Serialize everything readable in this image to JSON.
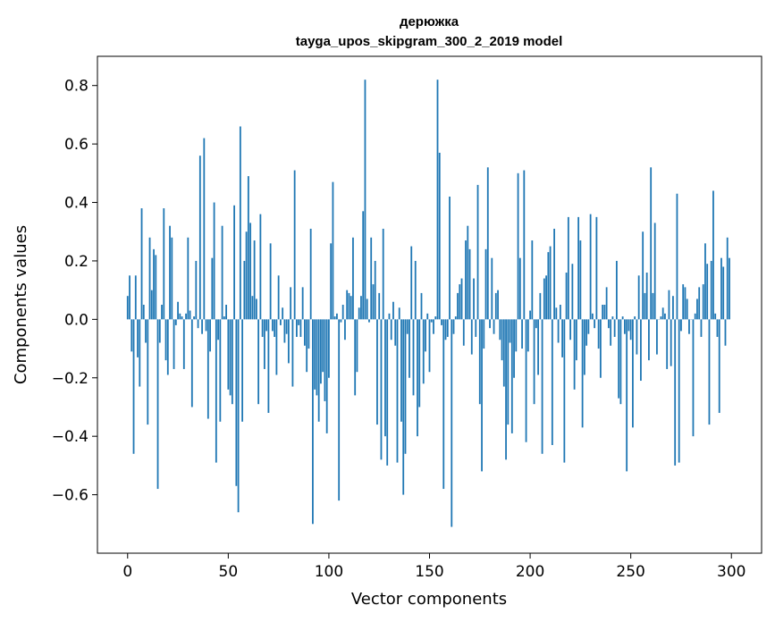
{
  "chart_data": {
    "type": "bar",
    "title": "дерюжка",
    "subtitle": "tayga_upos_skipgram_300_2_2019 model",
    "xlabel": "Vector components",
    "ylabel": "Components values",
    "xlim": [
      -15,
      315
    ],
    "ylim": [
      -0.8,
      0.9
    ],
    "xticks": [
      0,
      50,
      100,
      150,
      200,
      250,
      300
    ],
    "yticks": [
      -0.6,
      -0.4,
      -0.2,
      0.0,
      0.2,
      0.4,
      0.6,
      0.8
    ],
    "ytick_labels": [
      "−0.6",
      "−0.4",
      "−0.2",
      "0.0",
      "0.2",
      "0.4",
      "0.6",
      "0.8"
    ],
    "grid": false,
    "bar_color": "#1f77b4",
    "values": [
      0.08,
      0.15,
      -0.11,
      -0.46,
      0.15,
      -0.13,
      -0.23,
      0.38,
      0.05,
      -0.08,
      -0.36,
      0.28,
      0.1,
      0.24,
      0.22,
      -0.58,
      -0.08,
      0.05,
      0.38,
      -0.14,
      -0.19,
      0.32,
      0.28,
      -0.17,
      -0.02,
      0.06,
      0.02,
      0.01,
      -0.17,
      0.02,
      0.28,
      0.03,
      -0.3,
      0.01,
      0.2,
      -0.03,
      0.56,
      -0.05,
      0.62,
      -0.04,
      -0.34,
      -0.11,
      0.21,
      0.4,
      -0.49,
      -0.07,
      -0.35,
      0.32,
      0.01,
      0.05,
      -0.24,
      -0.26,
      -0.29,
      0.39,
      -0.57,
      -0.66,
      0.66,
      -0.35,
      0.2,
      0.3,
      0.49,
      0.33,
      0.08,
      0.27,
      0.07,
      -0.29,
      0.36,
      -0.06,
      -0.17,
      -0.04,
      -0.32,
      0.26,
      -0.04,
      -0.06,
      -0.19,
      0.15,
      -0.02,
      0.04,
      -0.08,
      -0.05,
      -0.15,
      0.11,
      -0.23,
      0.51,
      -0.06,
      -0.02,
      -0.06,
      0.11,
      -0.09,
      -0.18,
      -0.1,
      0.31,
      -0.7,
      -0.24,
      -0.26,
      -0.35,
      -0.22,
      -0.18,
      -0.28,
      -0.39,
      -0.2,
      0.26,
      0.47,
      0.01,
      0.02,
      -0.62,
      -0.01,
      0.05,
      -0.07,
      0.1,
      0.09,
      0.08,
      0.28,
      -0.26,
      -0.18,
      0.04,
      0.08,
      0.37,
      0.82,
      0.07,
      -0.01,
      0.28,
      0.12,
      0.2,
      -0.36,
      0.09,
      -0.48,
      0.31,
      -0.4,
      -0.5,
      0.02,
      -0.07,
      0.06,
      -0.09,
      -0.49,
      0.04,
      -0.35,
      -0.6,
      -0.46,
      -0.05,
      -0.2,
      0.25,
      -0.26,
      0.2,
      -0.4,
      -0.3,
      0.09,
      -0.22,
      -0.11,
      0.02,
      -0.18,
      -0.01,
      -0.05,
      0.01,
      0.82,
      0.57,
      -0.02,
      -0.58,
      -0.07,
      -0.06,
      0.42,
      -0.71,
      -0.05,
      0.01,
      0.09,
      0.12,
      0.14,
      -0.09,
      0.27,
      0.32,
      0.24,
      -0.12,
      0.14,
      -0.06,
      0.46,
      -0.29,
      -0.52,
      -0.1,
      0.24,
      0.52,
      -0.03,
      0.21,
      -0.05,
      0.09,
      0.1,
      -0.07,
      -0.14,
      -0.23,
      -0.48,
      -0.36,
      -0.08,
      -0.39,
      -0.2,
      -0.11,
      0.5,
      0.21,
      -0.1,
      0.51,
      -0.42,
      -0.11,
      0.03,
      0.27,
      -0.29,
      -0.03,
      -0.19,
      0.09,
      -0.46,
      0.14,
      0.15,
      0.23,
      0.25,
      -0.43,
      0.31,
      0.04,
      -0.08,
      0.05,
      -0.13,
      -0.49,
      0.16,
      0.35,
      -0.07,
      0.19,
      -0.24,
      -0.14,
      0.35,
      0.27,
      -0.37,
      -0.19,
      -0.09,
      -0.05,
      0.36,
      0.02,
      -0.03,
      0.35,
      -0.1,
      -0.2,
      0.05,
      0.05,
      0.11,
      -0.03,
      -0.09,
      0.01,
      -0.06,
      0.2,
      -0.27,
      -0.29,
      0.01,
      -0.05,
      -0.52,
      -0.04,
      -0.07,
      -0.37,
      0.01,
      -0.12,
      0.15,
      -0.21,
      0.3,
      0.09,
      0.16,
      -0.14,
      0.52,
      0.09,
      0.33,
      -0.12,
      0.0,
      0.01,
      0.04,
      0.02,
      -0.17,
      0.1,
      -0.16,
      0.08,
      -0.5,
      0.43,
      -0.49,
      -0.04,
      0.12,
      0.11,
      0.07,
      -0.05,
      0.0,
      -0.4,
      0.02,
      0.07,
      0.11,
      -0.06,
      0.12,
      0.26,
      0.19,
      -0.36,
      0.2,
      0.44,
      0.02,
      -0.06,
      -0.32,
      0.21,
      0.18,
      -0.09,
      0.28,
      0.21
    ]
  }
}
